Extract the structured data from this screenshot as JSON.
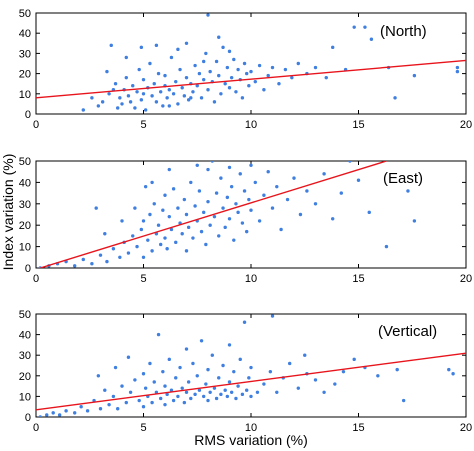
{
  "figure": {
    "ylabel": "Index variation (%)",
    "xlabel": "RMS variation (%)"
  },
  "chart_data": [
    {
      "type": "scatter",
      "annotation": "(North)",
      "xlim": [
        0,
        20
      ],
      "ylim": [
        0,
        50
      ],
      "xticks": [
        "0",
        "5",
        "10",
        "15",
        "20"
      ],
      "yticks": [
        "0",
        "10",
        "20",
        "30",
        "40",
        "50"
      ],
      "xtick_values": [
        0,
        5,
        10,
        15,
        20
      ],
      "ytick_values": [
        0,
        10,
        20,
        30,
        40,
        50
      ],
      "grid": false,
      "colors": {
        "points": "#3f7fe0",
        "fit": "#e8141c"
      },
      "fit_line": {
        "x": [
          0,
          20
        ],
        "y": [
          8,
          26.5
        ]
      },
      "points": [
        [
          2.2,
          2
        ],
        [
          2.6,
          8
        ],
        [
          2.9,
          4
        ],
        [
          3.1,
          6
        ],
        [
          3.3,
          21
        ],
        [
          3.4,
          10
        ],
        [
          3.6,
          12
        ],
        [
          3.7,
          15
        ],
        [
          3.8,
          3
        ],
        [
          3.9,
          8
        ],
        [
          4,
          5
        ],
        [
          4.1,
          12
        ],
        [
          4.2,
          18
        ],
        [
          4.3,
          9
        ],
        [
          4.4,
          6
        ],
        [
          4.5,
          14
        ],
        [
          4.6,
          3
        ],
        [
          4.7,
          11
        ],
        [
          4.8,
          22
        ],
        [
          4.9,
          7
        ],
        [
          5,
          17
        ],
        [
          5,
          10
        ],
        [
          5.1,
          2
        ],
        [
          5.2,
          13
        ],
        [
          5.3,
          25
        ],
        [
          5.4,
          9
        ],
        [
          5.5,
          15
        ],
        [
          5.6,
          6
        ],
        [
          5.7,
          20
        ],
        [
          5.8,
          11
        ],
        [
          5.9,
          4
        ],
        [
          6,
          14
        ],
        [
          6,
          19
        ],
        [
          6.1,
          8
        ],
        [
          6.2,
          12
        ],
        [
          6.3,
          28
        ],
        [
          6.4,
          10
        ],
        [
          6.5,
          16
        ],
        [
          6.6,
          5
        ],
        [
          6.7,
          22
        ],
        [
          6.8,
          13
        ],
        [
          6.9,
          9
        ],
        [
          7,
          18
        ],
        [
          7,
          35
        ],
        [
          7.1,
          7
        ],
        [
          7.2,
          15
        ],
        [
          7.3,
          11
        ],
        [
          7.4,
          24
        ],
        [
          7.5,
          14
        ],
        [
          7.6,
          20
        ],
        [
          7.7,
          8
        ],
        [
          7.8,
          17
        ],
        [
          7.9,
          30
        ],
        [
          8,
          49
        ],
        [
          8,
          12
        ],
        [
          8.1,
          21
        ],
        [
          8.2,
          16
        ],
        [
          8.3,
          6
        ],
        [
          8.4,
          26
        ],
        [
          8.5,
          19
        ],
        [
          8.6,
          10
        ],
        [
          8.7,
          33
        ],
        [
          8.8,
          15
        ],
        [
          8.9,
          23
        ],
        [
          9,
          31
        ],
        [
          9,
          13
        ],
        [
          9.1,
          18
        ],
        [
          9.2,
          27
        ],
        [
          9.3,
          11
        ],
        [
          9.4,
          22
        ],
        [
          9.5,
          17
        ],
        [
          9.6,
          8
        ],
        [
          9.7,
          25
        ],
        [
          9.8,
          20
        ],
        [
          9.9,
          14
        ],
        [
          10,
          21
        ],
        [
          10.2,
          16
        ],
        [
          10.4,
          24
        ],
        [
          10.6,
          12
        ],
        [
          10.8,
          19
        ],
        [
          11,
          23
        ],
        [
          11.3,
          15
        ],
        [
          11.6,
          22
        ],
        [
          11.9,
          18
        ],
        [
          12.2,
          25
        ],
        [
          12.6,
          20
        ],
        [
          13,
          23
        ],
        [
          13.5,
          18
        ],
        [
          13.8,
          33
        ],
        [
          14.4,
          22
        ],
        [
          14.8,
          43
        ],
        [
          15.3,
          43
        ],
        [
          15.6,
          37
        ],
        [
          16.4,
          23
        ],
        [
          16.7,
          8
        ],
        [
          17.6,
          19
        ],
        [
          19.6,
          21
        ],
        [
          19.6,
          23
        ],
        [
          3.5,
          34
        ],
        [
          4.2,
          28
        ],
        [
          5.6,
          34
        ],
        [
          6.6,
          32
        ],
        [
          7.2,
          8
        ],
        [
          7.8,
          26
        ],
        [
          4.9,
          33
        ],
        [
          6.2,
          4
        ],
        [
          8.5,
          38
        ]
      ]
    },
    {
      "type": "scatter",
      "annotation": "(East)",
      "xlim": [
        0,
        20
      ],
      "ylim": [
        0,
        50
      ],
      "xticks": [
        "0",
        "5",
        "10",
        "15",
        "20"
      ],
      "yticks": [
        "0",
        "10",
        "20",
        "30",
        "40",
        "50"
      ],
      "xtick_values": [
        0,
        5,
        10,
        15,
        20
      ],
      "ytick_values": [
        0,
        10,
        20,
        30,
        40,
        50
      ],
      "grid": false,
      "colors": {
        "points": "#3f7fe0",
        "fit": "#e8141c"
      },
      "fit_line": {
        "x": [
          0.2,
          16.3
        ],
        "y": [
          0,
          50
        ]
      },
      "points": [
        [
          0.2,
          0
        ],
        [
          0.6,
          1
        ],
        [
          1,
          2
        ],
        [
          1.4,
          3
        ],
        [
          1.8,
          1
        ],
        [
          2.2,
          4
        ],
        [
          2.6,
          2
        ],
        [
          3,
          6
        ],
        [
          3.3,
          3
        ],
        [
          3.6,
          9
        ],
        [
          3.9,
          5
        ],
        [
          4.1,
          12
        ],
        [
          4.3,
          7
        ],
        [
          4.5,
          15
        ],
        [
          4.7,
          10
        ],
        [
          4.9,
          18
        ],
        [
          5,
          22
        ],
        [
          5,
          5
        ],
        [
          5.1,
          38
        ],
        [
          5.2,
          13
        ],
        [
          5.3,
          25
        ],
        [
          5.4,
          8
        ],
        [
          5.5,
          30
        ],
        [
          5.6,
          16
        ],
        [
          5.7,
          20
        ],
        [
          5.8,
          11
        ],
        [
          5.9,
          27
        ],
        [
          6,
          34
        ],
        [
          6,
          14
        ],
        [
          6.1,
          9
        ],
        [
          6.2,
          24
        ],
        [
          6.3,
          18
        ],
        [
          6.4,
          37
        ],
        [
          6.5,
          12
        ],
        [
          6.6,
          28
        ],
        [
          6.7,
          21
        ],
        [
          6.8,
          16
        ],
        [
          6.9,
          32
        ],
        [
          7,
          25
        ],
        [
          7,
          8
        ],
        [
          7.1,
          19
        ],
        [
          7.2,
          40
        ],
        [
          7.3,
          14
        ],
        [
          7.4,
          29
        ],
        [
          7.5,
          22
        ],
        [
          7.6,
          36
        ],
        [
          7.7,
          17
        ],
        [
          7.8,
          26
        ],
        [
          7.9,
          11
        ],
        [
          8,
          46
        ],
        [
          8,
          31
        ],
        [
          8.1,
          20
        ],
        [
          8.2,
          50
        ],
        [
          8.3,
          24
        ],
        [
          8.4,
          35
        ],
        [
          8.5,
          15
        ],
        [
          8.6,
          42
        ],
        [
          8.7,
          28
        ],
        [
          8.8,
          19
        ],
        [
          8.9,
          33
        ],
        [
          9,
          47
        ],
        [
          9,
          23
        ],
        [
          9.1,
          38
        ],
        [
          9.2,
          13
        ],
        [
          9.3,
          30
        ],
        [
          9.4,
          26
        ],
        [
          9.5,
          44
        ],
        [
          9.6,
          21
        ],
        [
          9.7,
          36
        ],
        [
          9.8,
          17
        ],
        [
          9.9,
          32
        ],
        [
          10,
          48
        ],
        [
          10,
          27
        ],
        [
          10.2,
          40
        ],
        [
          10.4,
          22
        ],
        [
          10.6,
          34
        ],
        [
          10.8,
          45
        ],
        [
          11,
          28
        ],
        [
          11.2,
          38
        ],
        [
          11.4,
          18
        ],
        [
          11.7,
          32
        ],
        [
          12,
          42
        ],
        [
          12.3,
          25
        ],
        [
          12.6,
          36
        ],
        [
          13,
          30
        ],
        [
          13.4,
          44
        ],
        [
          13.8,
          23
        ],
        [
          14.2,
          35
        ],
        [
          14.6,
          50
        ],
        [
          15,
          41
        ],
        [
          15.5,
          26
        ],
        [
          16.3,
          10
        ],
        [
          17.3,
          36
        ],
        [
          17.6,
          22
        ],
        [
          2.8,
          28
        ],
        [
          3.2,
          16
        ],
        [
          4,
          22
        ],
        [
          4.6,
          28
        ],
        [
          5.4,
          40
        ],
        [
          6.2,
          46
        ],
        [
          7.5,
          48
        ]
      ]
    },
    {
      "type": "scatter",
      "annotation": "(Vertical)",
      "xlim": [
        0,
        20
      ],
      "ylim": [
        0,
        50
      ],
      "xticks": [
        "0",
        "5",
        "10",
        "15",
        "20"
      ],
      "yticks": [
        "0",
        "10",
        "20",
        "30",
        "40",
        "50"
      ],
      "xtick_values": [
        0,
        5,
        10,
        15,
        20
      ],
      "ytick_values": [
        0,
        10,
        20,
        30,
        40,
        50
      ],
      "grid": false,
      "colors": {
        "points": "#3f7fe0",
        "fit": "#e8141c"
      },
      "fit_line": {
        "x": [
          0,
          20
        ],
        "y": [
          3.5,
          31
        ]
      },
      "points": [
        [
          0.2,
          0
        ],
        [
          0.5,
          1
        ],
        [
          0.8,
          2
        ],
        [
          1.1,
          1
        ],
        [
          1.4,
          3
        ],
        [
          1.8,
          2
        ],
        [
          2.1,
          5
        ],
        [
          2.4,
          3
        ],
        [
          2.7,
          8
        ],
        [
          3,
          4
        ],
        [
          3.2,
          13
        ],
        [
          3.4,
          6
        ],
        [
          3.6,
          10
        ],
        [
          3.8,
          4
        ],
        [
          4,
          15
        ],
        [
          4.2,
          7
        ],
        [
          4.4,
          12
        ],
        [
          4.6,
          18
        ],
        [
          4.8,
          8
        ],
        [
          5,
          21
        ],
        [
          5,
          5
        ],
        [
          5.1,
          14
        ],
        [
          5.2,
          10
        ],
        [
          5.3,
          26
        ],
        [
          5.4,
          7
        ],
        [
          5.5,
          17
        ],
        [
          5.6,
          12
        ],
        [
          5.7,
          40
        ],
        [
          5.8,
          9
        ],
        [
          5.9,
          22
        ],
        [
          6,
          15
        ],
        [
          6,
          6
        ],
        [
          6.1,
          11
        ],
        [
          6.2,
          28
        ],
        [
          6.3,
          13
        ],
        [
          6.4,
          8
        ],
        [
          6.5,
          19
        ],
        [
          6.6,
          10
        ],
        [
          6.7,
          24
        ],
        [
          6.8,
          14
        ],
        [
          6.9,
          7
        ],
        [
          7,
          33
        ],
        [
          7,
          12
        ],
        [
          7.1,
          17
        ],
        [
          7.2,
          9
        ],
        [
          7.3,
          26
        ],
        [
          7.4,
          11
        ],
        [
          7.5,
          20
        ],
        [
          7.6,
          13
        ],
        [
          7.7,
          37
        ],
        [
          7.8,
          10
        ],
        [
          7.9,
          16
        ],
        [
          8,
          23
        ],
        [
          8,
          8
        ],
        [
          8.1,
          12
        ],
        [
          8.2,
          30
        ],
        [
          8.3,
          14
        ],
        [
          8.4,
          9
        ],
        [
          8.5,
          19
        ],
        [
          8.6,
          11
        ],
        [
          8.7,
          25
        ],
        [
          8.8,
          13
        ],
        [
          8.9,
          10
        ],
        [
          9,
          17
        ],
        [
          9,
          35
        ],
        [
          9.1,
          12
        ],
        [
          9.2,
          22
        ],
        [
          9.3,
          9
        ],
        [
          9.4,
          15
        ],
        [
          9.5,
          28
        ],
        [
          9.6,
          11
        ],
        [
          9.7,
          46
        ],
        [
          9.8,
          13
        ],
        [
          9.9,
          19
        ],
        [
          10,
          10
        ],
        [
          10,
          24
        ],
        [
          10.3,
          12
        ],
        [
          10.6,
          16
        ],
        [
          10.9,
          22
        ],
        [
          11.2,
          12
        ],
        [
          11.5,
          19
        ],
        [
          11.8,
          26
        ],
        [
          12.2,
          14
        ],
        [
          12.6,
          21
        ],
        [
          13,
          18
        ],
        [
          13.4,
          12
        ],
        [
          13.9,
          16
        ],
        [
          14.3,
          22
        ],
        [
          14.8,
          28
        ],
        [
          15.3,
          24
        ],
        [
          15.9,
          20
        ],
        [
          16.8,
          23
        ],
        [
          17.1,
          8
        ],
        [
          19.2,
          23
        ],
        [
          19.4,
          21
        ],
        [
          2.9,
          20
        ],
        [
          3.7,
          24
        ],
        [
          4.3,
          29
        ],
        [
          11,
          49
        ],
        [
          12.5,
          30
        ]
      ]
    }
  ]
}
